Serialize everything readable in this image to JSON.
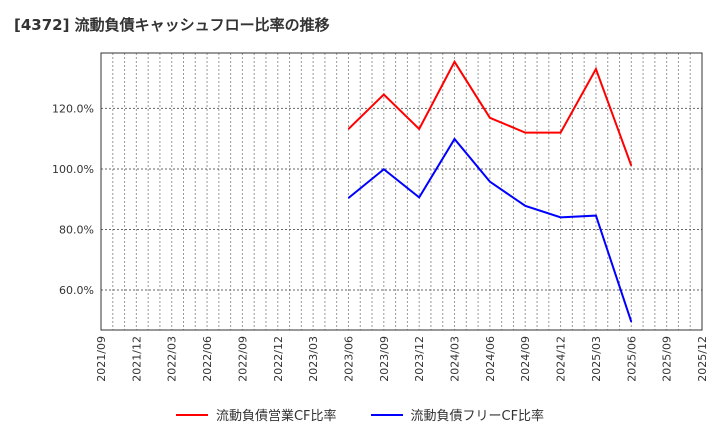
{
  "chart_data": {
    "type": "line",
    "title": "[4372]  流動負債キャッシュフロー比率の推移",
    "xlabel": "",
    "ylabel": "",
    "x_ticks": [
      "2021/09",
      "2021/12",
      "2022/03",
      "2022/06",
      "2022/09",
      "2022/12",
      "2023/03",
      "2023/06",
      "2023/09",
      "2023/12",
      "2024/03",
      "2024/06",
      "2024/09",
      "2024/12",
      "2025/03",
      "2025/06",
      "2025/09",
      "2025/12"
    ],
    "y_ticks": [
      60,
      80,
      100,
      120
    ],
    "y_tick_labels": [
      "60.0%",
      "80.0%",
      "100.0%",
      "120.0%"
    ],
    "ylim": [
      46.8,
      138.3
    ],
    "grid": true,
    "legend_position": "bottom",
    "x": [
      "2023/06",
      "2023/09",
      "2023/12",
      "2024/03",
      "2024/06",
      "2024/09",
      "2024/12",
      "2025/03",
      "2025/06"
    ],
    "series": [
      {
        "name": "流動負債営業CF比率",
        "color": "#ff0000",
        "values": [
          113.2,
          124.6,
          113.2,
          135.4,
          116.9,
          112.0,
          112.0,
          133.0,
          101.1
        ]
      },
      {
        "name": "流動負債フリーCF比率",
        "color": "#0000ff",
        "values": [
          90.4,
          99.9,
          90.6,
          109.9,
          95.8,
          87.8,
          84.0,
          84.6,
          49.5
        ]
      }
    ]
  }
}
